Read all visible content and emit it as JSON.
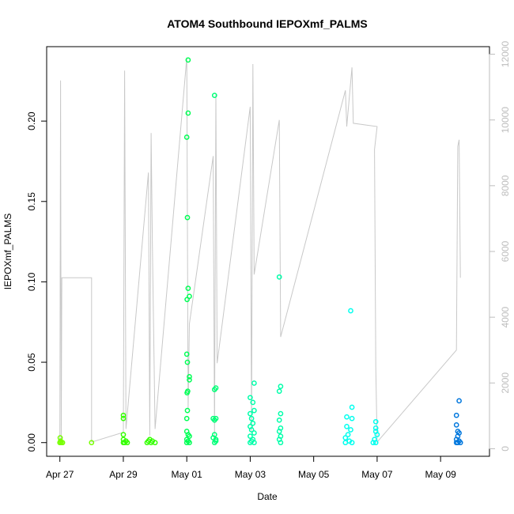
{
  "chart_data": {
    "type": "scatter",
    "title": "ATOM4 Southbound IEPOXmf_PALMS",
    "xlabel": "Date",
    "ylabel": "IEPOXmf_PALMS",
    "xlim": [
      "2018-04-26T14:00",
      "2018-05-10T13:00"
    ],
    "ylim": [
      -0.0085,
      0.2463
    ],
    "y2lim": [
      -230,
      12230
    ],
    "x_ticks": [
      {
        "label": "Apr 27",
        "date": "2018-04-27"
      },
      {
        "label": "Apr 29",
        "date": "2018-04-29"
      },
      {
        "label": "May 01",
        "date": "2018-05-01"
      },
      {
        "label": "May 03",
        "date": "2018-05-03"
      },
      {
        "label": "May 05",
        "date": "2018-05-05"
      },
      {
        "label": "May 07",
        "date": "2018-05-07"
      },
      {
        "label": "May 09",
        "date": "2018-05-09"
      }
    ],
    "y_ticks": [
      "0.00",
      "0.05",
      "0.10",
      "0.15",
      "0.20"
    ],
    "y2_ticks": [
      "0",
      "2000",
      "4000",
      "6000",
      "8000",
      "10000",
      "12000"
    ],
    "grid": false,
    "point_colors": [
      "#77ff00",
      "#33ff00",
      "#00ff55",
      "#00ff99",
      "#00ffdd",
      "#00d8ff",
      "#0077dd"
    ],
    "altitude_color": "#c8c8c8",
    "series": [
      {
        "color": "#77ff00",
        "points": [
          [
            "2018-04-27T00:00",
            0.0
          ],
          [
            "2018-04-27T00:15",
            0.003
          ],
          [
            "2018-04-27T00:30",
            0.001
          ],
          [
            "2018-04-27T01:00",
            0.0
          ],
          [
            "2018-04-27T02:00",
            0.0
          ],
          [
            "2018-04-28T00:00",
            0.0
          ]
        ]
      },
      {
        "color": "#33ff00",
        "points": [
          [
            "2018-04-29T00:00",
            0.017
          ],
          [
            "2018-04-29T00:00",
            0.015
          ],
          [
            "2018-04-29T00:00",
            0.005
          ],
          [
            "2018-04-29T00:00",
            0.002
          ],
          [
            "2018-04-29T00:00",
            0.0
          ],
          [
            "2018-04-29T01:00",
            0.0
          ],
          [
            "2018-04-29T02:00",
            0.001
          ],
          [
            "2018-04-29T03:00",
            0.0
          ],
          [
            "2018-04-29T18:00",
            0.0
          ],
          [
            "2018-04-29T19:00",
            0.001
          ],
          [
            "2018-04-29T20:00",
            0.002
          ],
          [
            "2018-04-29T21:00",
            0.0
          ],
          [
            "2018-04-29T22:00",
            0.001
          ],
          [
            "2018-04-30T00:00",
            0.0
          ]
        ]
      },
      {
        "color": "#00ff55",
        "points": [
          [
            "2018-05-01T01:00",
            0.238
          ],
          [
            "2018-05-01T01:00",
            0.205
          ],
          [
            "2018-05-01T00:00",
            0.19
          ],
          [
            "2018-05-01T00:30",
            0.14
          ],
          [
            "2018-05-01T01:00",
            0.096
          ],
          [
            "2018-05-01T02:00",
            0.091
          ],
          [
            "2018-05-01T00:15",
            0.089
          ],
          [
            "2018-05-01T00:00",
            0.055
          ],
          [
            "2018-05-01T00:30",
            0.05
          ],
          [
            "2018-05-01T02:00",
            0.041
          ],
          [
            "2018-05-01T02:00",
            0.039
          ],
          [
            "2018-05-01T00:45",
            0.032
          ],
          [
            "2018-05-01T00:15",
            0.031
          ],
          [
            "2018-05-01T00:30",
            0.02
          ],
          [
            "2018-05-01T00:00",
            0.015
          ],
          [
            "2018-05-01T00:00",
            0.007
          ],
          [
            "2018-05-01T01:00",
            0.005
          ],
          [
            "2018-05-01T02:00",
            0.004
          ],
          [
            "2018-05-01T00:00",
            0.002
          ],
          [
            "2018-05-01T01:00",
            0.001
          ],
          [
            "2018-05-01T02:00",
            0.0
          ],
          [
            "2018-05-01T00:00",
            0.0
          ]
        ]
      },
      {
        "color": "#00ff77",
        "points": [
          [
            "2018-05-01T21:00",
            0.216
          ],
          [
            "2018-05-01T21:00",
            0.033
          ],
          [
            "2018-05-01T22:00",
            0.034
          ],
          [
            "2018-05-01T20:00",
            0.015
          ],
          [
            "2018-05-01T21:00",
            0.014
          ],
          [
            "2018-05-01T22:00",
            0.015
          ],
          [
            "2018-05-01T21:00",
            0.005
          ],
          [
            "2018-05-01T20:00",
            0.003
          ],
          [
            "2018-05-01T22:00",
            0.002
          ],
          [
            "2018-05-01T21:00",
            0.0
          ],
          [
            "2018-05-01T22:00",
            0.001
          ]
        ]
      },
      {
        "color": "#00ffaa",
        "points": [
          [
            "2018-05-03T00:00",
            0.028
          ],
          [
            "2018-05-03T03:00",
            0.037
          ],
          [
            "2018-05-03T02:00",
            0.025
          ],
          [
            "2018-05-03T03:00",
            0.02
          ],
          [
            "2018-05-03T00:00",
            0.018
          ],
          [
            "2018-05-03T01:00",
            0.015
          ],
          [
            "2018-05-03T02:00",
            0.012
          ],
          [
            "2018-05-03T00:00",
            0.01
          ],
          [
            "2018-05-03T01:00",
            0.008
          ],
          [
            "2018-05-03T03:00",
            0.006
          ],
          [
            "2018-05-03T00:00",
            0.004
          ],
          [
            "2018-05-03T02:00",
            0.002
          ],
          [
            "2018-05-03T01:00",
            0.001
          ],
          [
            "2018-05-03T03:00",
            0.0
          ],
          [
            "2018-05-03T00:00",
            0.0
          ],
          [
            "2018-05-03T22:00",
            0.103
          ],
          [
            "2018-05-03T23:00",
            0.035
          ],
          [
            "2018-05-03T22:00",
            0.032
          ],
          [
            "2018-05-03T23:00",
            0.018
          ],
          [
            "2018-05-03T22:00",
            0.014
          ],
          [
            "2018-05-03T23:00",
            0.009
          ],
          [
            "2018-05-03T22:00",
            0.007
          ],
          [
            "2018-05-03T23:00",
            0.004
          ],
          [
            "2018-05-03T22:00",
            0.002
          ],
          [
            "2018-05-03T23:00",
            0.0
          ]
        ]
      },
      {
        "color": "#00ffee",
        "points": [
          [
            "2018-05-06T04:00",
            0.082
          ],
          [
            "2018-05-06T05:00",
            0.022
          ],
          [
            "2018-05-06T01:00",
            0.016
          ],
          [
            "2018-05-06T05:00",
            0.015
          ],
          [
            "2018-05-06T01:00",
            0.01
          ],
          [
            "2018-05-06T04:00",
            0.008
          ],
          [
            "2018-05-06T02:00",
            0.005
          ],
          [
            "2018-05-06T00:00",
            0.003
          ],
          [
            "2018-05-06T03:00",
            0.001
          ],
          [
            "2018-05-06T05:00",
            0.0
          ],
          [
            "2018-05-06T00:00",
            0.0
          ],
          [
            "2018-05-06T23:00",
            0.013
          ],
          [
            "2018-05-06T23:00",
            0.009
          ],
          [
            "2018-05-06T23:00",
            0.007
          ],
          [
            "2018-05-07T00:00",
            0.005
          ],
          [
            "2018-05-06T22:00",
            0.002
          ],
          [
            "2018-05-06T23:00",
            0.0
          ],
          [
            "2018-05-06T21:00",
            0.0
          ]
        ]
      },
      {
        "color": "#0077dd",
        "points": [
          [
            "2018-05-09T14:00",
            0.026
          ],
          [
            "2018-05-09T12:00",
            0.017
          ],
          [
            "2018-05-09T12:00",
            0.011
          ],
          [
            "2018-05-09T13:00",
            0.007
          ],
          [
            "2018-05-09T14:00",
            0.006
          ],
          [
            "2018-05-09T13:00",
            0.004
          ],
          [
            "2018-05-09T12:00",
            0.002
          ],
          [
            "2018-05-09T14:00",
            0.001
          ],
          [
            "2018-05-09T13:00",
            0.0
          ],
          [
            "2018-05-09T12:00",
            0.0
          ],
          [
            "2018-05-09T15:00",
            0.0
          ]
        ]
      }
    ],
    "altitude_trace": [
      [
        "2018-04-27T00:00",
        200
      ],
      [
        "2018-04-27T00:30",
        11200
      ],
      [
        "2018-04-27T01:00",
        200
      ],
      [
        "2018-04-27T01:30",
        5200
      ],
      [
        "2018-04-28T00:00",
        5200
      ],
      [
        "2018-04-28T00:00",
        200
      ],
      [
        "2018-04-29T00:00",
        500
      ],
      [
        "2018-04-29T01:00",
        11500
      ],
      [
        "2018-04-29T02:00",
        600
      ],
      [
        "2018-04-29T19:00",
        8400
      ],
      [
        "2018-04-29T20:00",
        400
      ],
      [
        "2018-04-29T21:00",
        9600
      ],
      [
        "2018-04-29T22:00",
        6200
      ],
      [
        "2018-04-30T00:00",
        600
      ],
      [
        "2018-05-01T00:00",
        11900
      ],
      [
        "2018-05-01T01:00",
        1200
      ],
      [
        "2018-05-01T02:00",
        3800
      ],
      [
        "2018-05-01T20:00",
        8900
      ],
      [
        "2018-05-01T21:00",
        400
      ],
      [
        "2018-05-01T22:00",
        10800
      ],
      [
        "2018-05-01T23:00",
        2600
      ],
      [
        "2018-05-03T00:00",
        10400
      ],
      [
        "2018-05-03T01:00",
        500
      ],
      [
        "2018-05-03T02:00",
        11700
      ],
      [
        "2018-05-03T03:00",
        5300
      ],
      [
        "2018-05-03T22:00",
        10000
      ],
      [
        "2018-05-03T23:00",
        3400
      ],
      [
        "2018-05-06T00:00",
        10900
      ],
      [
        "2018-05-06T01:00",
        9800
      ],
      [
        "2018-05-06T05:00",
        11600
      ],
      [
        "2018-05-06T06:00",
        9900
      ],
      [
        "2018-05-07T00:00",
        9800
      ],
      [
        "2018-05-06T22:00",
        9100
      ],
      [
        "2018-05-06T23:00",
        2500
      ],
      [
        "2018-05-07T00:00",
        200
      ],
      [
        "2018-05-09T12:00",
        3000
      ],
      [
        "2018-05-09T13:00",
        9200
      ],
      [
        "2018-05-09T14:00",
        9400
      ],
      [
        "2018-05-09T15:00",
        5200
      ]
    ]
  }
}
